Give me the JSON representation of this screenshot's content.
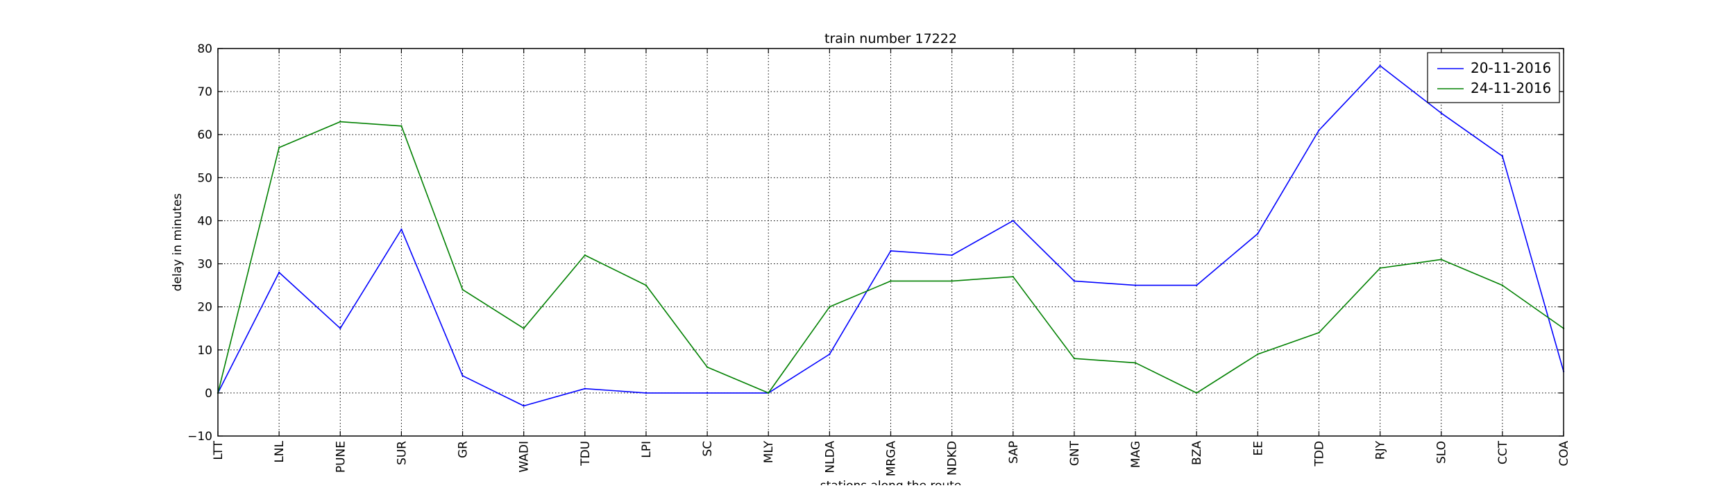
{
  "chart_data": {
    "type": "line",
    "title": "train number 17222",
    "xlabel": "stations along the route",
    "ylabel": "delay in minutes",
    "categories": [
      "LTT",
      "LNL",
      "PUNE",
      "SUR",
      "GR",
      "WADI",
      "TDU",
      "LPI",
      "SC",
      "MLY",
      "NLDA",
      "MRGA",
      "NDKD",
      "SAP",
      "GNT",
      "MAG",
      "BZA",
      "EE",
      "TDD",
      "RJY",
      "SLO",
      "CCT",
      "COA"
    ],
    "ylim": [
      -10,
      80
    ],
    "yticks": [
      -10,
      0,
      10,
      20,
      30,
      40,
      50,
      60,
      70,
      80
    ],
    "grid": true,
    "legend_position": "top-right",
    "series": [
      {
        "name": "20-11-2016",
        "color": "#0000ff",
        "values": [
          0,
          28,
          15,
          38,
          4,
          -3,
          1,
          0,
          0,
          0,
          9,
          33,
          32,
          40,
          26,
          25,
          25,
          37,
          61,
          76,
          65,
          55,
          5
        ]
      },
      {
        "name": "24-11-2016",
        "color": "#008000",
        "values": [
          0,
          57,
          63,
          62,
          24,
          15,
          32,
          25,
          6,
          0,
          20,
          26,
          26,
          27,
          8,
          7,
          0,
          9,
          14,
          29,
          31,
          25,
          15
        ]
      }
    ]
  }
}
